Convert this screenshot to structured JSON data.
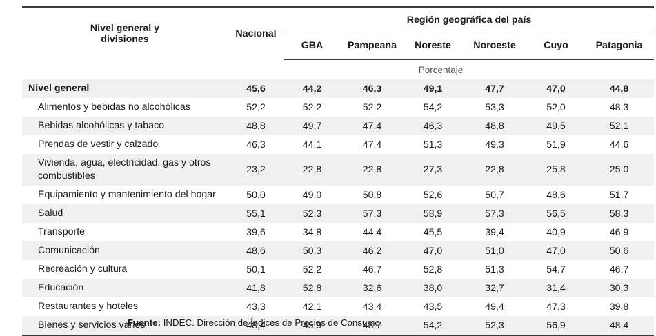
{
  "table": {
    "first_col_header": "Nivel general y divisiones",
    "nacional_header": "Nacional",
    "region_header": "Región geográfica del país",
    "regions": [
      "GBA",
      "Pampeana",
      "Noreste",
      "Noroeste",
      "Cuyo",
      "Patagonia"
    ],
    "unit_label": "Porcentaje",
    "rows": [
      {
        "label": "Nivel general",
        "values": [
          "45,6",
          "44,2",
          "46,3",
          "49,1",
          "47,7",
          "47,0",
          "44,8"
        ]
      },
      {
        "label": "Alimentos y bebidas no alcohólicas",
        "values": [
          "52,2",
          "52,2",
          "52,2",
          "54,2",
          "53,3",
          "52,0",
          "48,3"
        ]
      },
      {
        "label": "Bebidas alcohólicas y tabaco",
        "values": [
          "48,8",
          "49,7",
          "47,4",
          "46,3",
          "48,8",
          "49,5",
          "52,1"
        ]
      },
      {
        "label": "Prendas de vestir y calzado",
        "values": [
          "46,3",
          "44,1",
          "47,4",
          "51,3",
          "49,3",
          "51,9",
          "44,6"
        ]
      },
      {
        "label": "Vivienda, agua, electricidad, gas y otros combustibles",
        "values": [
          "23,2",
          "22,8",
          "22,8",
          "27,3",
          "22,8",
          "25,8",
          "25,0"
        ]
      },
      {
        "label": "Equipamiento y mantenimiento del hogar",
        "values": [
          "50,0",
          "49,0",
          "50,8",
          "52,6",
          "50,7",
          "48,6",
          "51,7"
        ]
      },
      {
        "label": "Salud",
        "values": [
          "55,1",
          "52,3",
          "57,3",
          "58,9",
          "57,3",
          "56,5",
          "58,3"
        ]
      },
      {
        "label": "Transporte",
        "values": [
          "39,6",
          "34,8",
          "44,4",
          "45,5",
          "39,4",
          "40,9",
          "46,9"
        ]
      },
      {
        "label": "Comunicación",
        "values": [
          "48,6",
          "50,3",
          "46,2",
          "47,0",
          "51,0",
          "47,0",
          "50,6"
        ]
      },
      {
        "label": "Recreación y cultura",
        "values": [
          "50,1",
          "52,2",
          "46,7",
          "52,8",
          "51,3",
          "54,7",
          "46,7"
        ]
      },
      {
        "label": "Educación",
        "values": [
          "41,8",
          "52,8",
          "32,6",
          "38,0",
          "32,7",
          "31,4",
          "30,3"
        ]
      },
      {
        "label": "Restaurantes y hoteles",
        "values": [
          "43,3",
          "42,1",
          "43,4",
          "43,5",
          "49,4",
          "47,3",
          "39,8"
        ]
      },
      {
        "label": "Bienes y servicios varios",
        "values": [
          "48,4",
          "45,9",
          "48,7",
          "54,2",
          "52,3",
          "56,9",
          "48,4"
        ]
      }
    ]
  },
  "source": {
    "label": "Fuente:",
    "text": "INDEC. Dirección de Índices de Precios de Consumo."
  }
}
